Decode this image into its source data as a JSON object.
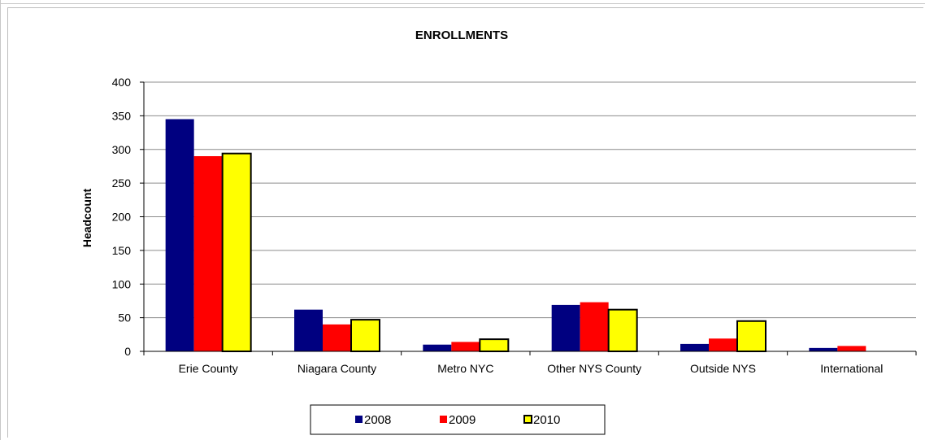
{
  "chart_data": {
    "type": "bar",
    "title": "ENROLLMENTS",
    "xlabel": "",
    "ylabel": "Headcount",
    "ylim": [
      0,
      400
    ],
    "yticks": [
      0,
      50,
      100,
      150,
      200,
      250,
      300,
      350,
      400
    ],
    "grid": true,
    "legend_position": "bottom",
    "categories": [
      "Erie County",
      "Niagara County",
      "Metro NYC",
      "Other NYS County",
      "Outside NYS",
      "International"
    ],
    "series": [
      {
        "name": "2008",
        "color": "#000080",
        "values": [
          345,
          62,
          10,
          69,
          11,
          5
        ]
      },
      {
        "name": "2009",
        "color": "#ff0000",
        "values": [
          290,
          40,
          14,
          73,
          19,
          8
        ]
      },
      {
        "name": "2010",
        "color": "#ffff00",
        "values": [
          294,
          47,
          18,
          62,
          45,
          0
        ]
      }
    ]
  }
}
